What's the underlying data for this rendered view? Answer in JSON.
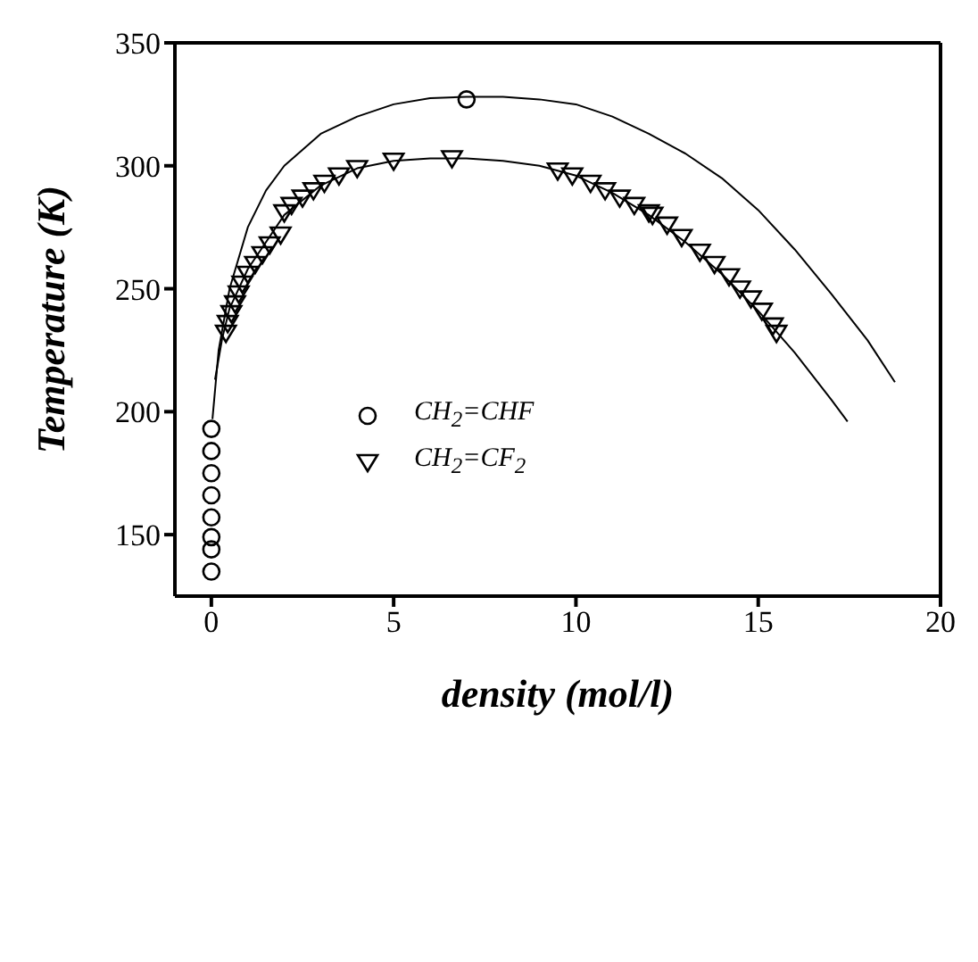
{
  "chart_data": {
    "type": "scatter",
    "xlabel": "density (mol/l)",
    "ylabel": "Temperature (K)",
    "xlim": [
      -1,
      20
    ],
    "xticks": [
      0,
      5,
      10,
      15,
      20
    ],
    "ylim": [
      125,
      350
    ],
    "yticks": [
      150,
      200,
      250,
      300,
      350
    ],
    "legend": "center",
    "series": [
      {
        "name": "CH$_{2}$=CHF",
        "marker": "circle",
        "color": "#000000",
        "x": [
          0,
          0,
          0,
          0,
          0,
          0,
          0,
          0,
          7.0
        ],
        "values": [
          193,
          184,
          175,
          166,
          157,
          149,
          144,
          135,
          327
        ]
      },
      {
        "name": "CH$_{2}$=CF$_{2}$",
        "marker": "triangle",
        "color": "#000000",
        "x": [
          0.4,
          0.45,
          0.55,
          0.65,
          0.75,
          0.85,
          1.0,
          1.2,
          1.4,
          1.6,
          1.9,
          2.0,
          2.2,
          2.5,
          2.8,
          3.1,
          3.5,
          4.0,
          5.0,
          6.6,
          9.5,
          9.9,
          10.4,
          10.8,
          11.2,
          11.6,
          12.0,
          12.1,
          12.5,
          12.9,
          13.4,
          13.8,
          14.2,
          14.5,
          14.8,
          15.1,
          15.4,
          15.5
        ],
        "values": [
          232,
          236,
          240,
          244,
          248,
          252,
          256,
          260,
          264,
          268,
          272,
          281,
          284,
          287,
          290,
          293,
          296,
          299,
          302,
          303,
          298,
          296,
          293,
          290,
          287,
          284,
          281,
          280,
          276,
          271,
          265,
          260,
          255,
          250,
          246,
          241,
          235,
          232
        ]
      },
      {
        "type": "line",
        "marker": "none",
        "line_style": "solid",
        "color": "#000000",
        "x": [
          0.03,
          0.2,
          0.5,
          1,
          1.5,
          2,
          3,
          4,
          5,
          6,
          7,
          8,
          9,
          10,
          11,
          12,
          13,
          14,
          15,
          16,
          17,
          18,
          18.75
        ],
        "values": [
          197,
          225,
          250,
          275,
          290,
          300,
          313,
          320,
          325,
          327.5,
          328,
          328,
          327,
          325,
          320,
          313,
          305,
          295,
          282,
          266,
          248,
          229,
          212
        ]
      },
      {
        "type": "line",
        "marker": "none",
        "line_style": "solid",
        "color": "#000000",
        "x": [
          0.1,
          0.3,
          0.5,
          1,
          2,
          3,
          4,
          5,
          6,
          7,
          8,
          9,
          10,
          11,
          12,
          13,
          14,
          15,
          16,
          17,
          17.45
        ],
        "values": [
          213,
          230,
          242,
          258,
          280,
          292,
          299,
          302,
          303,
          303,
          302,
          300,
          296,
          289,
          280,
          269,
          256,
          241,
          224,
          205,
          196
        ]
      }
    ]
  }
}
